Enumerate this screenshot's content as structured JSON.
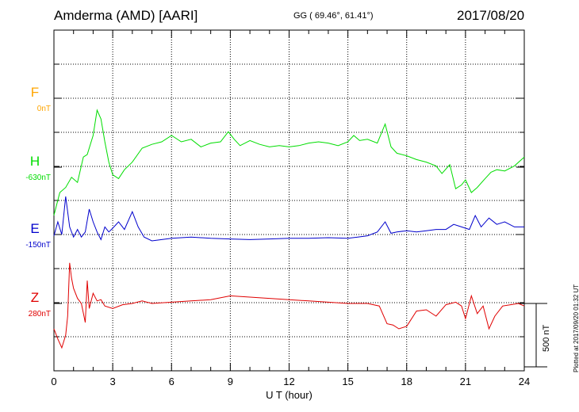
{
  "header": {
    "station": "Amderma (AMD)  [AARI]",
    "coords": "GG ( 69.46°,  61.41°)",
    "date": "2017/08/20"
  },
  "plotted_note": "Plotted at 2017/09/20 01:32 UT",
  "scale_label": "500 nT",
  "colors": {
    "F": "#ffa500",
    "H": "#00dd00",
    "E": "#0000cc",
    "Z": "#e00000",
    "grid": "#000000"
  },
  "chart_data": {
    "type": "line",
    "xlabel": "U T (hour)",
    "xlim": [
      0,
      24
    ],
    "xticks": [
      "0",
      "3",
      "6",
      "9",
      "12",
      "15",
      "18",
      "21",
      "24"
    ],
    "scale_bar_nT": 500,
    "series": [
      {
        "name": "F",
        "baseline": "0nT",
        "x": [],
        "y": []
      },
      {
        "name": "H",
        "baseline": "-630nT",
        "x": [
          0,
          0.3,
          0.6,
          0.9,
          1.2,
          1.5,
          1.7,
          2.0,
          2.2,
          2.4,
          2.6,
          2.8,
          3.0,
          3.3,
          3.6,
          4.0,
          4.5,
          5.0,
          5.5,
          6.0,
          6.5,
          7.0,
          7.5,
          8.0,
          8.5,
          8.9,
          9.2,
          9.5,
          10.0,
          10.5,
          11.0,
          11.5,
          12.0,
          12.5,
          13.0,
          13.5,
          14.0,
          14.5,
          15.0,
          15.3,
          15.6,
          16.0,
          16.5,
          16.9,
          17.2,
          17.5,
          18.0,
          18.5,
          19.0,
          19.5,
          19.8,
          20.2,
          20.5,
          20.8,
          21.0,
          21.3,
          21.6,
          22.0,
          22.3,
          22.6,
          23.0,
          23.5,
          24.0
        ],
        "y": [
          -380,
          -200,
          -160,
          -80,
          -120,
          80,
          100,
          250,
          450,
          380,
          200,
          40,
          -60,
          -90,
          -20,
          40,
          150,
          180,
          200,
          250,
          200,
          220,
          160,
          190,
          200,
          280,
          220,
          170,
          210,
          180,
          160,
          170,
          160,
          170,
          190,
          200,
          190,
          170,
          200,
          250,
          210,
          220,
          190,
          340,
          160,
          110,
          90,
          60,
          40,
          10,
          -50,
          20,
          -170,
          -140,
          -100,
          -200,
          -160,
          -90,
          -40,
          -20,
          -30,
          10,
          80
        ]
      },
      {
        "name": "E",
        "baseline": "-150nT",
        "x": [
          0,
          0.2,
          0.4,
          0.6,
          0.8,
          1.0,
          1.2,
          1.4,
          1.6,
          1.8,
          2.0,
          2.2,
          2.4,
          2.6,
          2.8,
          3.0,
          3.3,
          3.6,
          4.0,
          4.3,
          4.6,
          5.0,
          5.5,
          6.0,
          7.0,
          8.0,
          9.0,
          10.0,
          11.0,
          12.0,
          13.0,
          14.0,
          15.0,
          15.5,
          16.0,
          16.5,
          16.9,
          17.2,
          17.5,
          18.0,
          18.5,
          19.0,
          19.5,
          20.0,
          20.4,
          20.8,
          21.2,
          21.5,
          21.8,
          22.2,
          22.6,
          23.0,
          23.5,
          24.0
        ],
        "y": [
          -10,
          100,
          0,
          300,
          60,
          -20,
          40,
          -20,
          20,
          200,
          100,
          20,
          -40,
          60,
          20,
          50,
          100,
          40,
          180,
          60,
          -20,
          -50,
          -40,
          -30,
          -20,
          -30,
          -35,
          -40,
          -35,
          -30,
          -30,
          -25,
          -30,
          -20,
          -10,
          20,
          100,
          10,
          20,
          30,
          20,
          30,
          40,
          40,
          80,
          60,
          40,
          150,
          60,
          130,
          80,
          100,
          60,
          60
        ]
      },
      {
        "name": "Z",
        "baseline": "280nT",
        "x": [
          0,
          0.2,
          0.4,
          0.6,
          0.7,
          0.8,
          0.9,
          1.0,
          1.2,
          1.4,
          1.6,
          1.7,
          1.8,
          2.0,
          2.2,
          2.4,
          2.6,
          3.0,
          3.5,
          4.0,
          4.5,
          5.0,
          6.0,
          7.0,
          8.0,
          9.0,
          10.0,
          11.0,
          12.0,
          13.0,
          14.0,
          15.0,
          16.0,
          16.6,
          17.0,
          17.3,
          17.6,
          18.0,
          18.5,
          19.0,
          19.5,
          20.0,
          20.5,
          20.8,
          21.0,
          21.3,
          21.6,
          21.9,
          22.2,
          22.5,
          22.9,
          23.3,
          23.7,
          24.0
        ],
        "y": [
          -200,
          -280,
          -350,
          -250,
          -100,
          320,
          200,
          120,
          40,
          0,
          -150,
          180,
          -40,
          80,
          20,
          30,
          -20,
          -40,
          -10,
          0,
          20,
          0,
          10,
          20,
          30,
          60,
          50,
          40,
          30,
          20,
          10,
          0,
          0,
          -20,
          -160,
          -170,
          -200,
          -180,
          -60,
          -50,
          -100,
          -10,
          10,
          -20,
          -120,
          60,
          -80,
          -20,
          -200,
          -100,
          -20,
          -10,
          0,
          -20
        ]
      }
    ]
  }
}
